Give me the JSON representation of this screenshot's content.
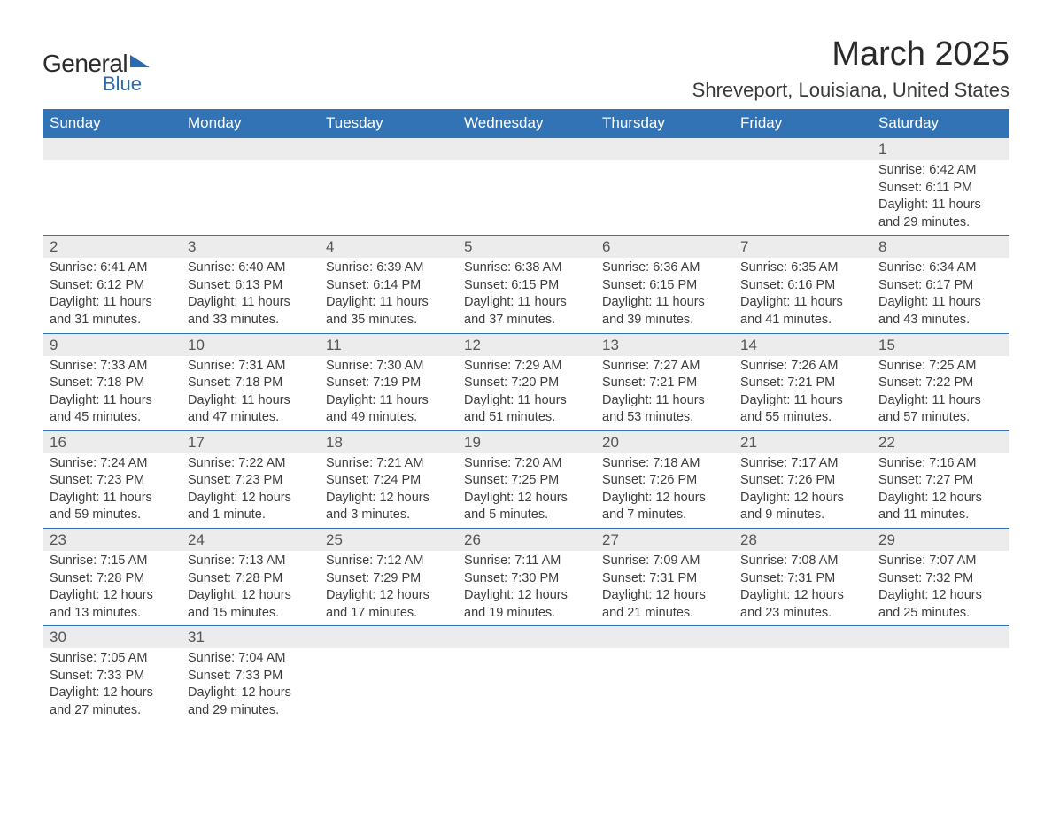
{
  "brand": {
    "general": "General",
    "blue": "Blue"
  },
  "title": "March 2025",
  "location": "Shreveport, Louisiana, United States",
  "colors": {
    "header_bg": "#3273b6",
    "header_text": "#ffffff",
    "daynum_bg": "#ececec",
    "row_border": "#3273b6",
    "body_text": "#3d3d3d",
    "brand_blue": "#2a6bb0"
  },
  "weekdays": [
    "Sunday",
    "Monday",
    "Tuesday",
    "Wednesday",
    "Thursday",
    "Friday",
    "Saturday"
  ],
  "weeks": [
    [
      null,
      null,
      null,
      null,
      null,
      null,
      {
        "n": "1",
        "sr": "Sunrise: 6:42 AM",
        "ss": "Sunset: 6:11 PM",
        "d1": "Daylight: 11 hours",
        "d2": "and 29 minutes."
      }
    ],
    [
      {
        "n": "2",
        "sr": "Sunrise: 6:41 AM",
        "ss": "Sunset: 6:12 PM",
        "d1": "Daylight: 11 hours",
        "d2": "and 31 minutes."
      },
      {
        "n": "3",
        "sr": "Sunrise: 6:40 AM",
        "ss": "Sunset: 6:13 PM",
        "d1": "Daylight: 11 hours",
        "d2": "and 33 minutes."
      },
      {
        "n": "4",
        "sr": "Sunrise: 6:39 AM",
        "ss": "Sunset: 6:14 PM",
        "d1": "Daylight: 11 hours",
        "d2": "and 35 minutes."
      },
      {
        "n": "5",
        "sr": "Sunrise: 6:38 AM",
        "ss": "Sunset: 6:15 PM",
        "d1": "Daylight: 11 hours",
        "d2": "and 37 minutes."
      },
      {
        "n": "6",
        "sr": "Sunrise: 6:36 AM",
        "ss": "Sunset: 6:15 PM",
        "d1": "Daylight: 11 hours",
        "d2": "and 39 minutes."
      },
      {
        "n": "7",
        "sr": "Sunrise: 6:35 AM",
        "ss": "Sunset: 6:16 PM",
        "d1": "Daylight: 11 hours",
        "d2": "and 41 minutes."
      },
      {
        "n": "8",
        "sr": "Sunrise: 6:34 AM",
        "ss": "Sunset: 6:17 PM",
        "d1": "Daylight: 11 hours",
        "d2": "and 43 minutes."
      }
    ],
    [
      {
        "n": "9",
        "sr": "Sunrise: 7:33 AM",
        "ss": "Sunset: 7:18 PM",
        "d1": "Daylight: 11 hours",
        "d2": "and 45 minutes."
      },
      {
        "n": "10",
        "sr": "Sunrise: 7:31 AM",
        "ss": "Sunset: 7:18 PM",
        "d1": "Daylight: 11 hours",
        "d2": "and 47 minutes."
      },
      {
        "n": "11",
        "sr": "Sunrise: 7:30 AM",
        "ss": "Sunset: 7:19 PM",
        "d1": "Daylight: 11 hours",
        "d2": "and 49 minutes."
      },
      {
        "n": "12",
        "sr": "Sunrise: 7:29 AM",
        "ss": "Sunset: 7:20 PM",
        "d1": "Daylight: 11 hours",
        "d2": "and 51 minutes."
      },
      {
        "n": "13",
        "sr": "Sunrise: 7:27 AM",
        "ss": "Sunset: 7:21 PM",
        "d1": "Daylight: 11 hours",
        "d2": "and 53 minutes."
      },
      {
        "n": "14",
        "sr": "Sunrise: 7:26 AM",
        "ss": "Sunset: 7:21 PM",
        "d1": "Daylight: 11 hours",
        "d2": "and 55 minutes."
      },
      {
        "n": "15",
        "sr": "Sunrise: 7:25 AM",
        "ss": "Sunset: 7:22 PM",
        "d1": "Daylight: 11 hours",
        "d2": "and 57 minutes."
      }
    ],
    [
      {
        "n": "16",
        "sr": "Sunrise: 7:24 AM",
        "ss": "Sunset: 7:23 PM",
        "d1": "Daylight: 11 hours",
        "d2": "and 59 minutes."
      },
      {
        "n": "17",
        "sr": "Sunrise: 7:22 AM",
        "ss": "Sunset: 7:23 PM",
        "d1": "Daylight: 12 hours",
        "d2": "and 1 minute."
      },
      {
        "n": "18",
        "sr": "Sunrise: 7:21 AM",
        "ss": "Sunset: 7:24 PM",
        "d1": "Daylight: 12 hours",
        "d2": "and 3 minutes."
      },
      {
        "n": "19",
        "sr": "Sunrise: 7:20 AM",
        "ss": "Sunset: 7:25 PM",
        "d1": "Daylight: 12 hours",
        "d2": "and 5 minutes."
      },
      {
        "n": "20",
        "sr": "Sunrise: 7:18 AM",
        "ss": "Sunset: 7:26 PM",
        "d1": "Daylight: 12 hours",
        "d2": "and 7 minutes."
      },
      {
        "n": "21",
        "sr": "Sunrise: 7:17 AM",
        "ss": "Sunset: 7:26 PM",
        "d1": "Daylight: 12 hours",
        "d2": "and 9 minutes."
      },
      {
        "n": "22",
        "sr": "Sunrise: 7:16 AM",
        "ss": "Sunset: 7:27 PM",
        "d1": "Daylight: 12 hours",
        "d2": "and 11 minutes."
      }
    ],
    [
      {
        "n": "23",
        "sr": "Sunrise: 7:15 AM",
        "ss": "Sunset: 7:28 PM",
        "d1": "Daylight: 12 hours",
        "d2": "and 13 minutes."
      },
      {
        "n": "24",
        "sr": "Sunrise: 7:13 AM",
        "ss": "Sunset: 7:28 PM",
        "d1": "Daylight: 12 hours",
        "d2": "and 15 minutes."
      },
      {
        "n": "25",
        "sr": "Sunrise: 7:12 AM",
        "ss": "Sunset: 7:29 PM",
        "d1": "Daylight: 12 hours",
        "d2": "and 17 minutes."
      },
      {
        "n": "26",
        "sr": "Sunrise: 7:11 AM",
        "ss": "Sunset: 7:30 PM",
        "d1": "Daylight: 12 hours",
        "d2": "and 19 minutes."
      },
      {
        "n": "27",
        "sr": "Sunrise: 7:09 AM",
        "ss": "Sunset: 7:31 PM",
        "d1": "Daylight: 12 hours",
        "d2": "and 21 minutes."
      },
      {
        "n": "28",
        "sr": "Sunrise: 7:08 AM",
        "ss": "Sunset: 7:31 PM",
        "d1": "Daylight: 12 hours",
        "d2": "and 23 minutes."
      },
      {
        "n": "29",
        "sr": "Sunrise: 7:07 AM",
        "ss": "Sunset: 7:32 PM",
        "d1": "Daylight: 12 hours",
        "d2": "and 25 minutes."
      }
    ],
    [
      {
        "n": "30",
        "sr": "Sunrise: 7:05 AM",
        "ss": "Sunset: 7:33 PM",
        "d1": "Daylight: 12 hours",
        "d2": "and 27 minutes."
      },
      {
        "n": "31",
        "sr": "Sunrise: 7:04 AM",
        "ss": "Sunset: 7:33 PM",
        "d1": "Daylight: 12 hours",
        "d2": "and 29 minutes."
      },
      null,
      null,
      null,
      null,
      null
    ]
  ]
}
